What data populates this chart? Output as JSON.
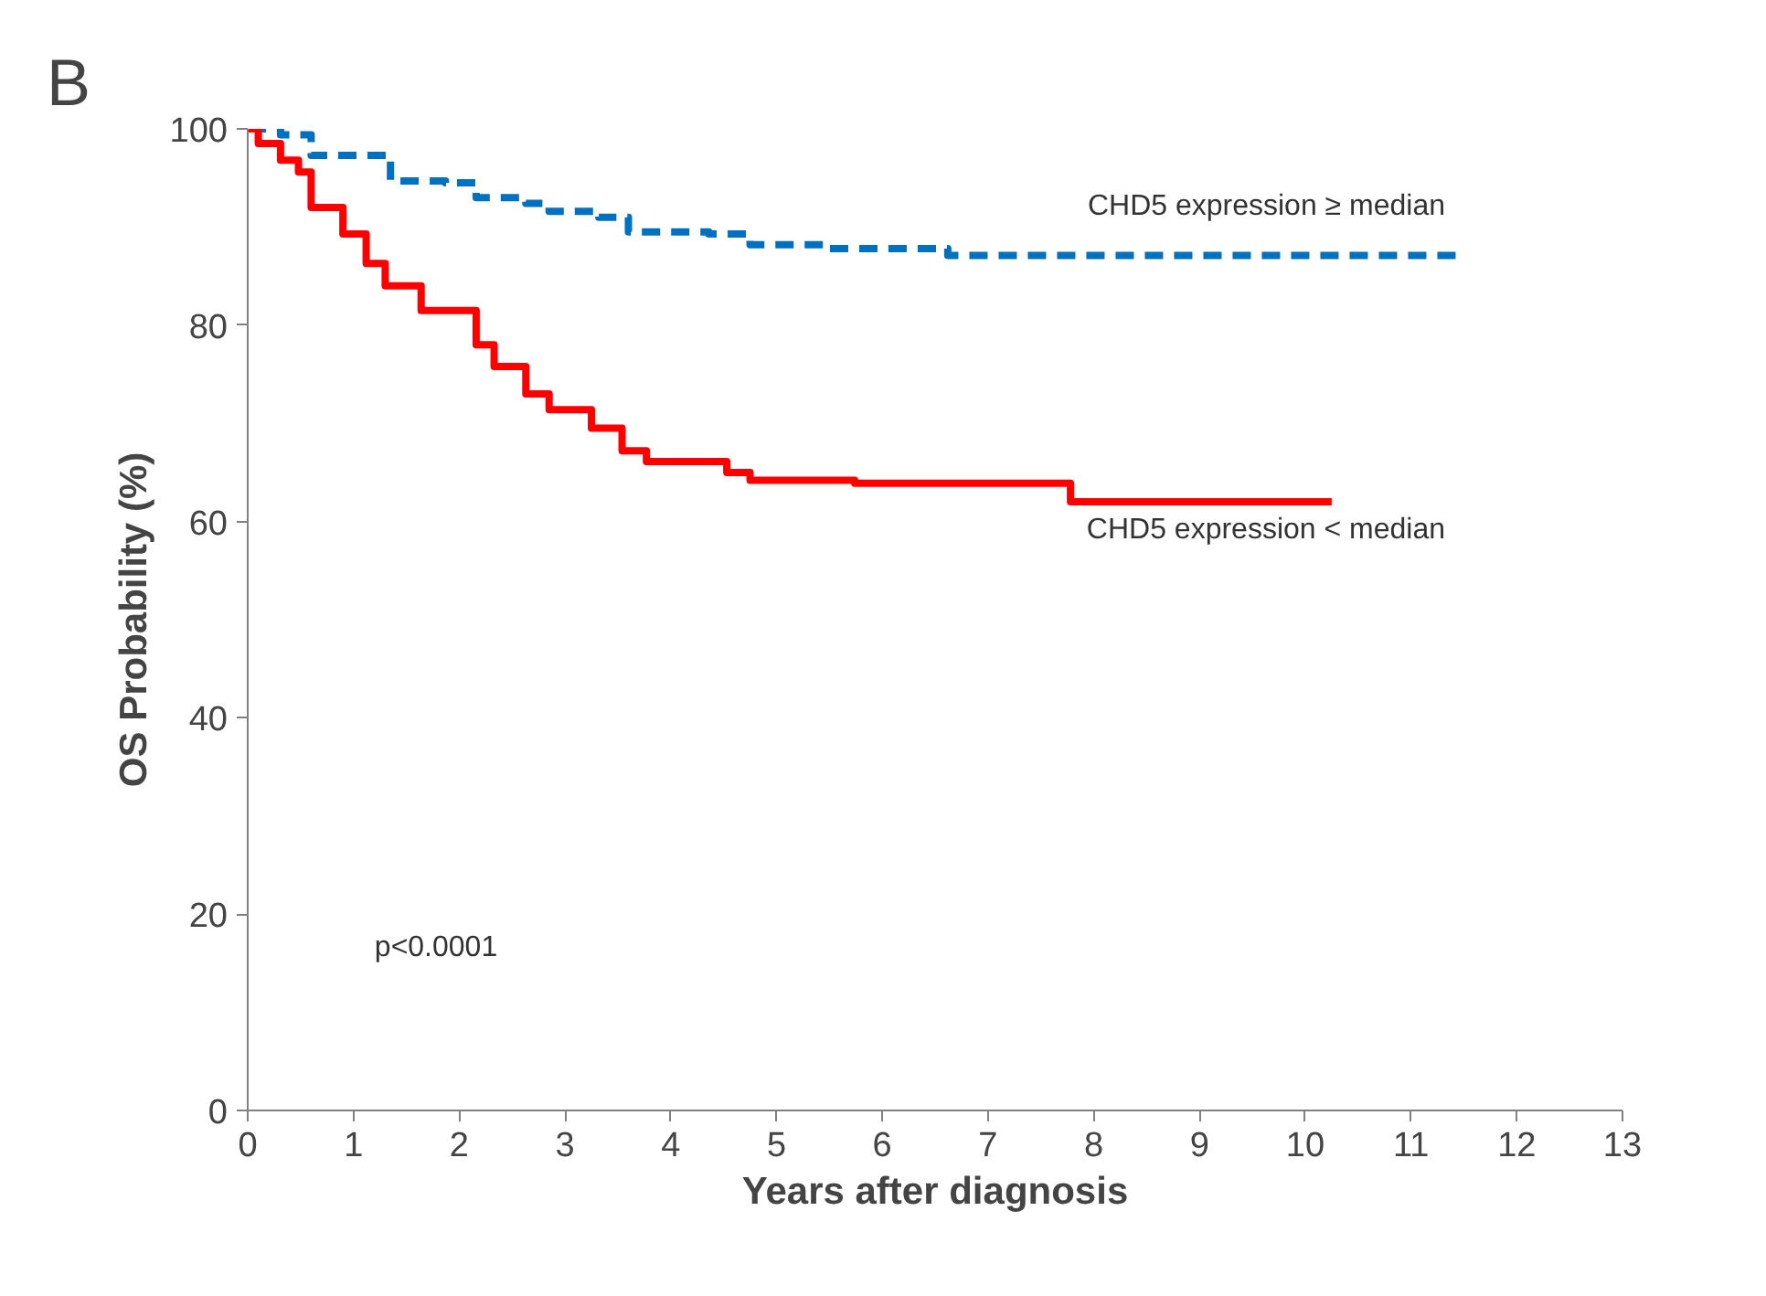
{
  "chart_data": {
    "type": "step",
    "xlabel": "Years after diagnosis",
    "ylabel": "OS Probability (%)",
    "xlim": [
      0,
      13
    ],
    "ylim": [
      0,
      100
    ],
    "xticks": [
      0,
      1,
      2,
      3,
      4,
      5,
      6,
      7,
      8,
      9,
      10,
      11,
      12,
      13
    ],
    "yticks": [
      0,
      20,
      40,
      60,
      80,
      100
    ],
    "grid": false,
    "series": [
      {
        "color": "#0070c0",
        "line_style": "dashed",
        "x": [
          0,
          0.31,
          0.6,
          1.0,
          1.35,
          1.87,
          2.16,
          2.63,
          2.85,
          3.32,
          3.6,
          4.36,
          4.75,
          5.45,
          6.62,
          11.44
        ],
        "values": [
          100,
          99.4,
          97.3,
          97.3,
          94.7,
          94.5,
          93,
          92.4,
          91.6,
          91,
          89.5,
          89.3,
          88.2,
          87.8,
          87.1,
          87.1
        ]
      },
      {
        "color": "#ff0000",
        "line_style": "solid",
        "x": [
          0,
          0.1,
          0.31,
          0.48,
          0.6,
          0.9,
          1.12,
          1.3,
          1.64,
          2.16,
          2.33,
          2.63,
          2.85,
          3.25,
          3.54,
          3.77,
          4.53,
          4.75,
          5.74,
          7.78,
          10.25
        ],
        "values": [
          100,
          98.5,
          96.8,
          95.6,
          92,
          89.3,
          86.3,
          84,
          81.5,
          78,
          75.8,
          73,
          71.4,
          69.5,
          67.2,
          66.1,
          65,
          64.2,
          63.9,
          62,
          62
        ]
      }
    ],
    "annotations": [
      "CHD5 expression ≥  median",
      "CHD5 expression <  median",
      "p<0.0001",
      "B"
    ]
  }
}
